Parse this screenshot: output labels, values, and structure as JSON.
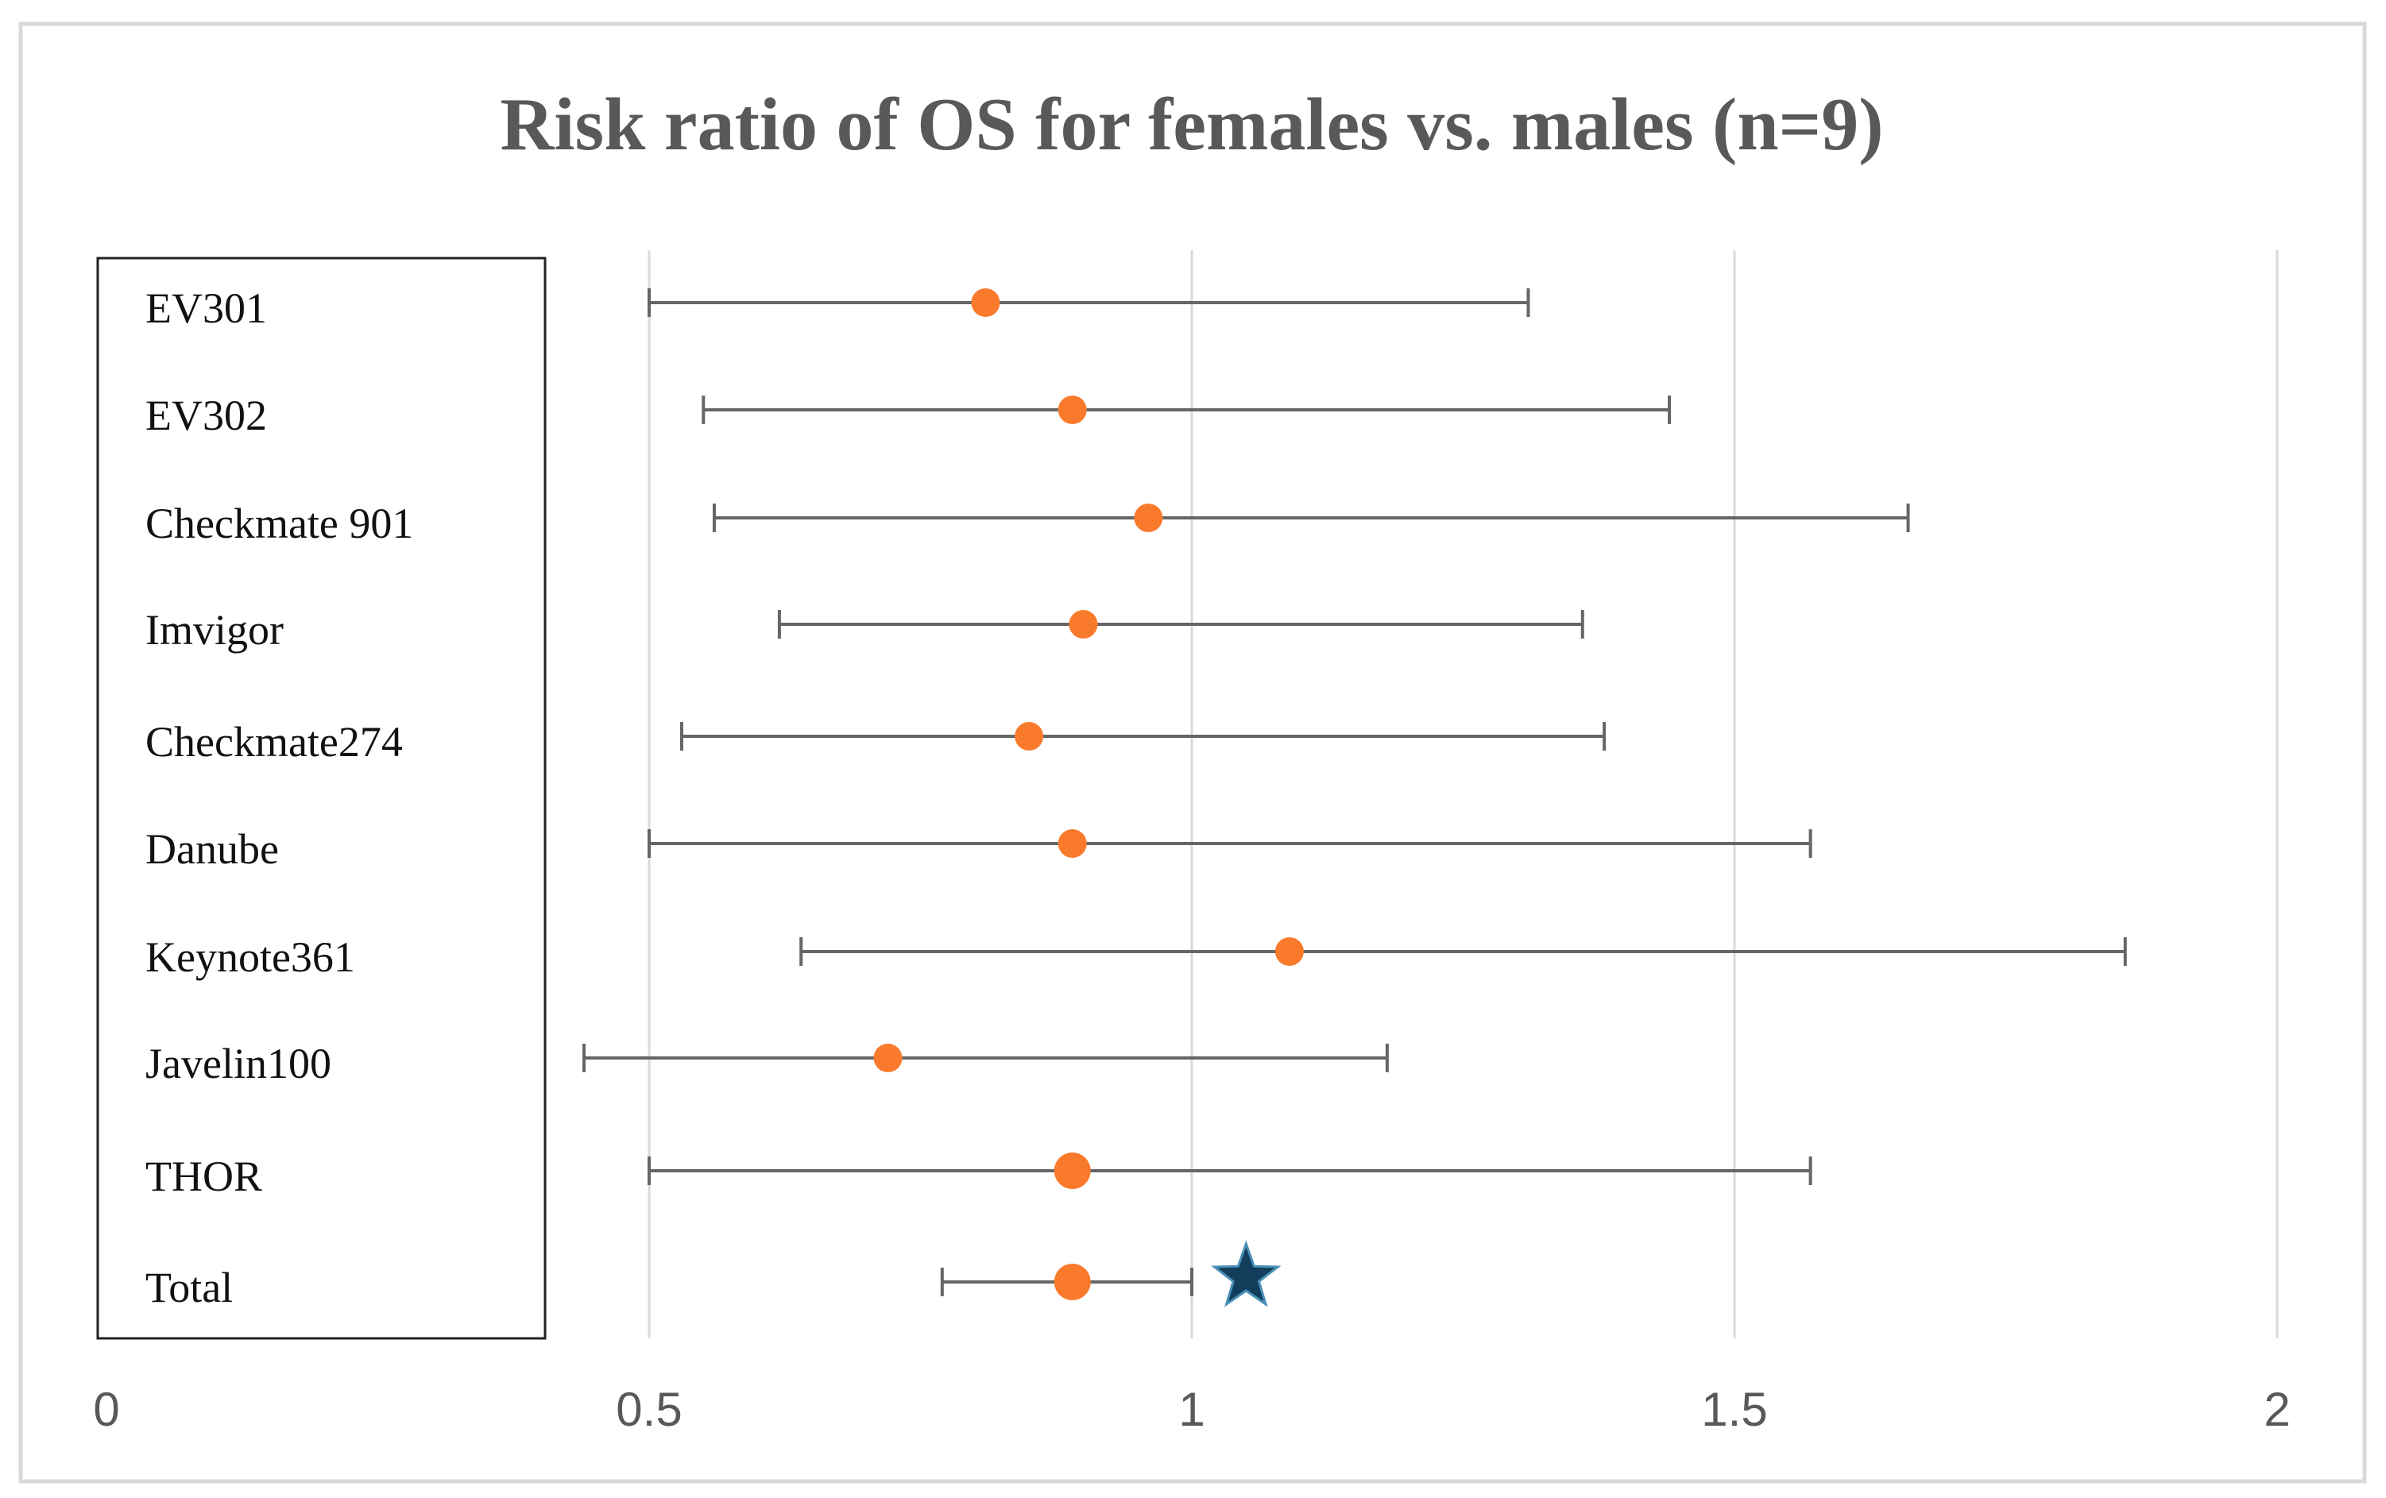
{
  "chart_data": {
    "type": "forest",
    "title": "Risk ratio of OS for females vs. males (n=9)",
    "xlim": [
      0,
      2
    ],
    "x_ticks": [
      "0",
      "0.5",
      "1",
      "1.5",
      "2"
    ],
    "gridlines": [
      0.5,
      1,
      1.5,
      2
    ],
    "grid": true,
    "label_box": "left",
    "studies": [
      {
        "name": "EV301",
        "estimate": 0.81,
        "lower": 0.5,
        "upper": 1.31
      },
      {
        "name": "EV302",
        "estimate": 0.89,
        "lower": 0.55,
        "upper": 1.44
      },
      {
        "name": "Checkmate 901",
        "estimate": 0.96,
        "lower": 0.56,
        "upper": 1.66
      },
      {
        "name": "Imvigor",
        "estimate": 0.9,
        "lower": 0.62,
        "upper": 1.36
      },
      {
        "name": "Checkmate274",
        "estimate": 0.85,
        "lower": 0.53,
        "upper": 1.38
      },
      {
        "name": "Danube",
        "estimate": 0.89,
        "lower": 0.5,
        "upper": 1.57
      },
      {
        "name": "Keynote361",
        "estimate": 1.09,
        "lower": 0.64,
        "upper": 1.86
      },
      {
        "name": "Javelin100",
        "estimate": 0.72,
        "lower": 0.44,
        "upper": 1.18
      },
      {
        "name": "THOR",
        "estimate": 0.89,
        "lower": 0.5,
        "upper": 1.57
      },
      {
        "name": "Total",
        "estimate": 0.89,
        "lower": 0.77,
        "upper": 1.0,
        "marker": "star",
        "star_at": 1.05
      }
    ],
    "colors": {
      "point": "#f97a2b",
      "whisker": "#666666",
      "grid": "#d9d9d9",
      "star": "#123e5c",
      "star_outline": "#4a90b8"
    }
  }
}
